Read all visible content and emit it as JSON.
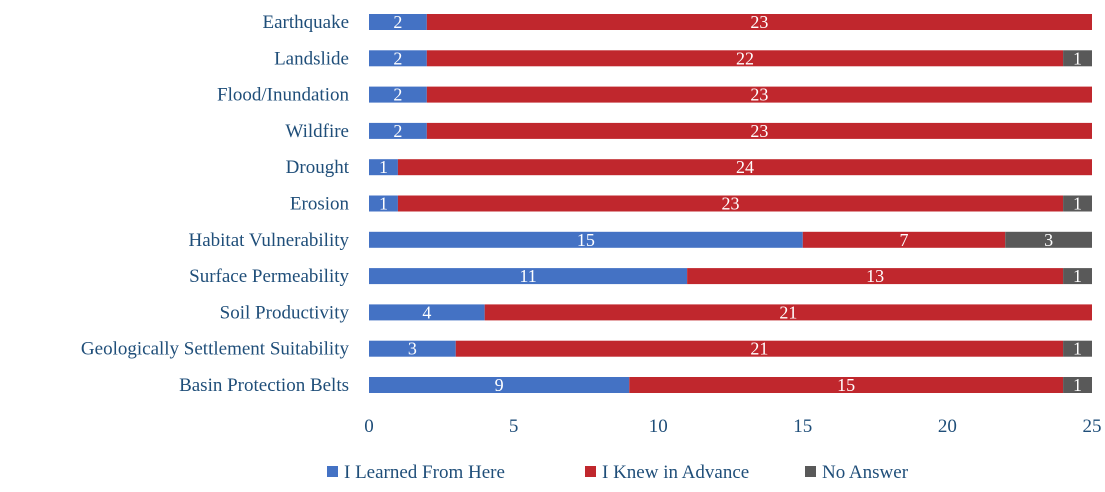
{
  "chart_data": {
    "type": "bar",
    "orientation": "horizontal",
    "stacked": true,
    "categories": [
      "Earthquake",
      "Landslide",
      "Flood/Inundation",
      "Wildfire",
      "Drought",
      "Erosion",
      "Habitat Vulnerability",
      "Surface Permeability",
      "Soil Productivity",
      "Geologically Settlement Suitability",
      "Basin Protection Belts"
    ],
    "series": [
      {
        "name": "I Learned From Here",
        "color": "#4472c4",
        "values": [
          2,
          2,
          2,
          2,
          1,
          1,
          15,
          11,
          4,
          3,
          9
        ]
      },
      {
        "name": "I Knew in Advance",
        "color": "#c0272d",
        "values": [
          23,
          22,
          23,
          23,
          24,
          23,
          7,
          13,
          21,
          21,
          15
        ]
      },
      {
        "name": "No Answer",
        "color": "#595959",
        "values": [
          0,
          1,
          0,
          0,
          0,
          1,
          3,
          1,
          0,
          1,
          1
        ]
      }
    ],
    "xlim": [
      0,
      25
    ],
    "xticks": [
      "0",
      "5",
      "10",
      "15",
      "20",
      "25"
    ],
    "legend_position": "bottom",
    "grid": false
  }
}
